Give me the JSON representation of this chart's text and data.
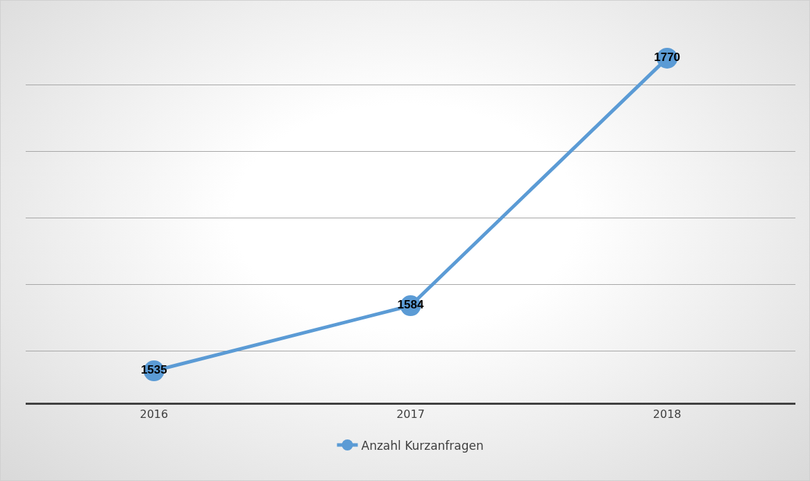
{
  "chart_data": {
    "type": "line",
    "categories": [
      "2016",
      "2017",
      "2018"
    ],
    "series": [
      {
        "name": "Anzahl Kurzanfragen",
        "color": "#5b9bd5",
        "values": [
          1535,
          1584,
          1770
        ]
      }
    ],
    "tick_labels": "x",
    "grid": "y",
    "legend": "bottom",
    "marker": "circle",
    "line_style": "solid",
    "data_labels": true
  }
}
